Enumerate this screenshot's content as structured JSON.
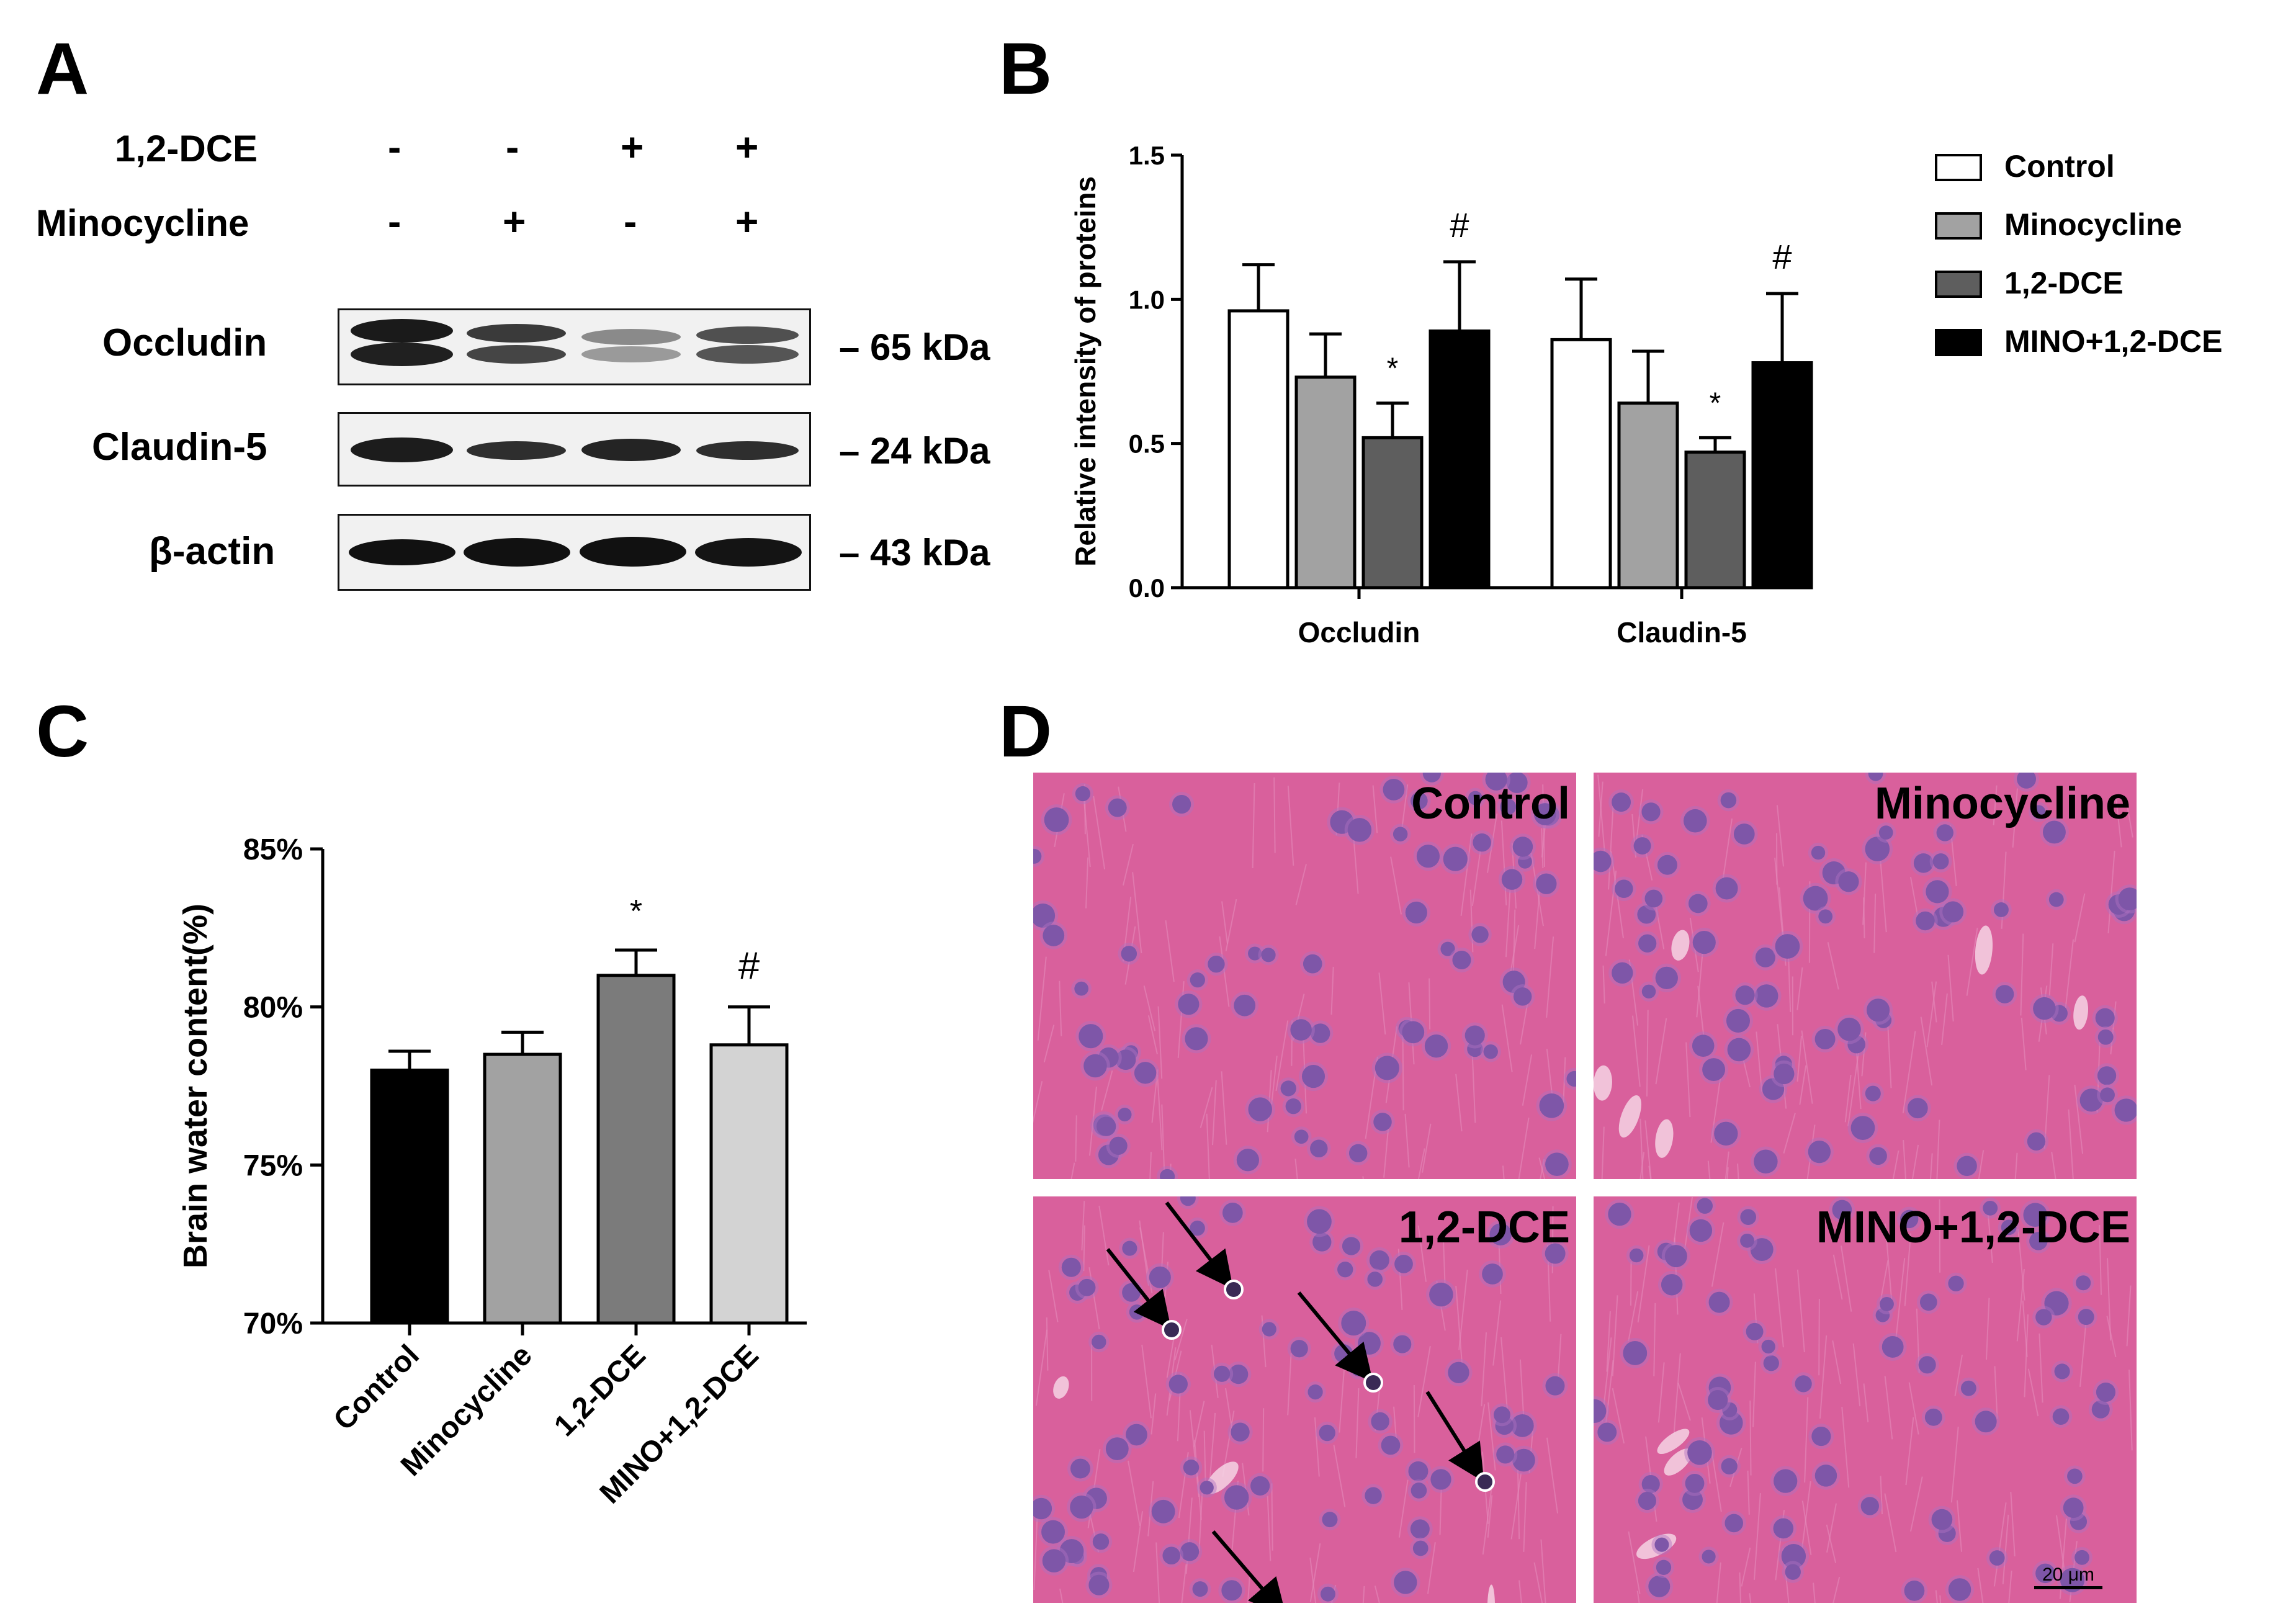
{
  "panels": {
    "a": "A",
    "b": "B",
    "c": "C",
    "d": "D"
  },
  "blot": {
    "treatments": [
      {
        "name": "1,2-DCE",
        "signs": [
          "-",
          "-",
          "+",
          "+"
        ]
      },
      {
        "name": "Minocycline",
        "signs": [
          "-",
          "+",
          "-",
          "+"
        ]
      }
    ],
    "proteins": [
      {
        "name": "Occludin",
        "mw": "– 65 kDa"
      },
      {
        "name": "Claudin-5",
        "mw": "– 24 kDa"
      },
      {
        "name": "β-actin",
        "mw": "– 43 kDa"
      }
    ],
    "band_intensity": {
      "occludin": [
        0.95,
        0.7,
        0.4,
        0.75
      ],
      "claudin5": [
        0.9,
        0.65,
        0.75,
        0.65
      ],
      "actin": [
        1,
        1,
        1,
        1
      ]
    }
  },
  "chart_data": [
    {
      "type": "bar",
      "title": "",
      "xlabel": "",
      "ylabel": "Relative intensity of proteins",
      "categories": [
        "Occludin",
        "Claudin-5"
      ],
      "ylim": [
        0,
        1.5
      ],
      "yticks": [
        "0.0",
        "0.5",
        "1.0",
        "1.5"
      ],
      "series": [
        {
          "name": "Control",
          "values": [
            0.96,
            0.86
          ],
          "errors": [
            0.16,
            0.21
          ],
          "color": "#ffffff"
        },
        {
          "name": "Minocycline",
          "values": [
            0.73,
            0.64
          ],
          "errors": [
            0.15,
            0.18
          ],
          "color": "#a2a2a2"
        },
        {
          "name": "1,2-DCE",
          "values": [
            0.52,
            0.47
          ],
          "errors": [
            0.12,
            0.05
          ],
          "color": "#5e5e5e"
        },
        {
          "name": "MINO+1,2-DCE",
          "values": [
            0.89,
            0.78
          ],
          "errors": [
            0.24,
            0.24
          ],
          "color": "#000000"
        }
      ],
      "annotations": [
        {
          "series": 2,
          "category": 0,
          "text": "*"
        },
        {
          "series": 3,
          "category": 0,
          "text": "#"
        },
        {
          "series": 2,
          "category": 1,
          "text": "*"
        },
        {
          "series": 3,
          "category": 1,
          "text": "#"
        }
      ],
      "legend": "right"
    },
    {
      "type": "bar",
      "title": "",
      "xlabel": "",
      "ylabel": "Brain water  content(%)",
      "categories": [
        "Control",
        "Minocycline",
        "1,2-DCE",
        "MINO+1,2-DCE"
      ],
      "values": [
        78.0,
        78.5,
        81.0,
        78.8
      ],
      "errors": [
        0.6,
        0.7,
        0.8,
        1.2
      ],
      "colors": [
        "#000000",
        "#a2a2a2",
        "#7b7b7b",
        "#d3d3d3"
      ],
      "ylim": [
        70,
        85
      ],
      "yticks": [
        "70%",
        "75%",
        "80%",
        "85%"
      ],
      "annotations": [
        {
          "category": 2,
          "text": "*"
        },
        {
          "category": 3,
          "text": "#"
        }
      ]
    }
  ],
  "he": {
    "labels": [
      "Control",
      "Minocycline",
      "1,2-DCE",
      "MINO+1,2-DCE"
    ],
    "scale_bar": "20 μm"
  }
}
